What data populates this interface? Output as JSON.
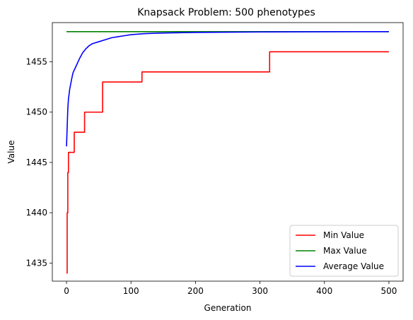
{
  "chart_data": {
    "type": "line",
    "title": "Knapsack Problem: 500 phenotypes",
    "xlabel": "Generation",
    "ylabel": "Value",
    "xlim": [
      -22,
      522
    ],
    "ylim": [
      1433.2,
      1458.9
    ],
    "xticks": [
      0,
      100,
      200,
      300,
      400,
      500
    ],
    "yticks": [
      1435,
      1440,
      1445,
      1450,
      1455
    ],
    "grid": false,
    "legend_position": "lower-right",
    "series": [
      {
        "name": "Min Value",
        "color": "#ff0000",
        "step": true,
        "x": [
          0,
          1,
          2,
          3,
          6,
          12,
          28,
          56,
          117,
          315,
          500
        ],
        "y": [
          1434,
          1440,
          1444,
          1446,
          1446,
          1448,
          1450,
          1453,
          1454,
          1456,
          1456
        ]
      },
      {
        "name": "Max Value",
        "color": "#008000",
        "step": false,
        "x": [
          0,
          500
        ],
        "y": [
          1458,
          1458
        ]
      },
      {
        "name": "Average Value",
        "color": "#0000ff",
        "step": false,
        "x": [
          0,
          1,
          2,
          3,
          5,
          8,
          10,
          15,
          20,
          25,
          30,
          35,
          40,
          50,
          60,
          70,
          80,
          90,
          100,
          120,
          140,
          160,
          180,
          200,
          250,
          300,
          350,
          400,
          450,
          500
        ],
        "y": [
          1446.6,
          1448.5,
          1450.3,
          1451.3,
          1452.3,
          1453.3,
          1453.9,
          1454.6,
          1455.3,
          1455.9,
          1456.3,
          1456.6,
          1456.8,
          1457.0,
          1457.2,
          1457.4,
          1457.5,
          1457.6,
          1457.7,
          1457.8,
          1457.85,
          1457.88,
          1457.9,
          1457.92,
          1457.95,
          1457.97,
          1457.98,
          1457.99,
          1458.0,
          1458.0
        ]
      }
    ]
  }
}
